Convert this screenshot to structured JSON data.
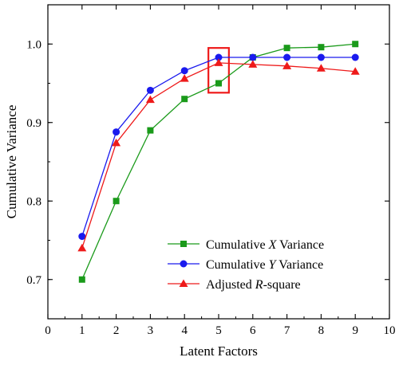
{
  "chart_data": {
    "type": "line",
    "title": "",
    "xlabel": "Latent Factors",
    "ylabel": "Cumulative Variance",
    "xlim": [
      0,
      10
    ],
    "ylim": [
      0.65,
      1.05
    ],
    "x_ticks": [
      "0",
      "1",
      "2",
      "3",
      "4",
      "5",
      "6",
      "7",
      "8",
      "9",
      "10"
    ],
    "y_ticks": [
      "0.7",
      "0.8",
      "0.9",
      "1.0"
    ],
    "grid": false,
    "legend_position": "bottom-right",
    "x": [
      1,
      2,
      3,
      4,
      5,
      6,
      7,
      8,
      9
    ],
    "series": [
      {
        "name_prefix": "Cumulative ",
        "name_italic": "X",
        "name_suffix": " Variance",
        "color": "#1a9a1a",
        "marker": "square",
        "values": [
          0.7,
          0.8,
          0.89,
          0.93,
          0.95,
          0.983,
          0.995,
          0.996,
          1.0
        ]
      },
      {
        "name_prefix": "Cumulative ",
        "name_italic": "Y",
        "name_suffix": " Variance",
        "color": "#1a1aee",
        "marker": "circle",
        "values": [
          0.755,
          0.888,
          0.941,
          0.966,
          0.983,
          0.983,
          0.983,
          0.983,
          0.983
        ]
      },
      {
        "name_prefix": "Adjusted ",
        "name_italic": "R",
        "name_suffix": "-square",
        "color": "#ee1a1a",
        "marker": "triangle",
        "values": [
          0.74,
          0.874,
          0.929,
          0.956,
          0.976,
          0.974,
          0.972,
          0.969,
          0.965
        ]
      }
    ],
    "highlight_box": {
      "x_range": [
        4.7,
        5.3
      ],
      "y_range": [
        0.938,
        0.995
      ],
      "color": "#ee1a1a"
    }
  }
}
